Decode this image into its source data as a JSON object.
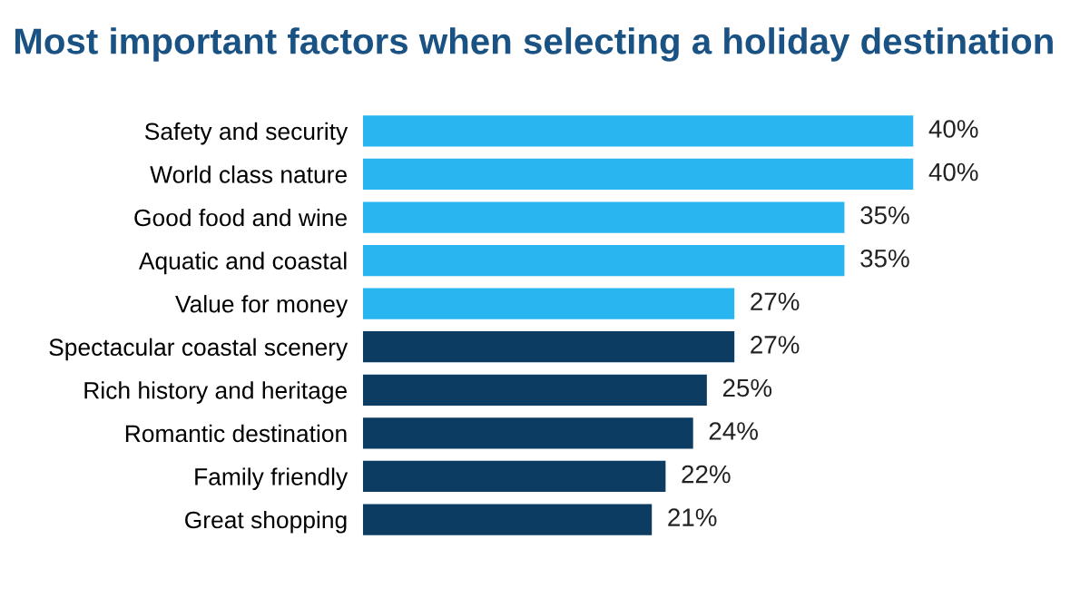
{
  "chart_data": {
    "type": "bar",
    "orientation": "horizontal",
    "title": "Most important factors when selecting a holiday destination",
    "categories": [
      "Safety and security",
      "World class nature",
      "Good food and wine",
      "Aquatic and coastal",
      "Value for money",
      "Spectacular coastal scenery",
      "Rich history and heritage",
      "Romantic destination",
      "Family friendly",
      "Great shopping"
    ],
    "values": [
      40,
      40,
      35,
      35,
      27,
      27,
      25,
      24,
      22,
      21
    ],
    "colors": [
      "#29b5f0",
      "#29b5f0",
      "#29b5f0",
      "#29b5f0",
      "#29b5f0",
      "#0c3c62",
      "#0c3c62",
      "#0c3c62",
      "#0c3c62",
      "#0c3c62"
    ],
    "value_labels": [
      "40%",
      "40%",
      "35%",
      "35%",
      "27%",
      "27%",
      "25%",
      "24%",
      "22%",
      "21%"
    ],
    "tick_labels": "y",
    "grid": false,
    "legend": false
  }
}
